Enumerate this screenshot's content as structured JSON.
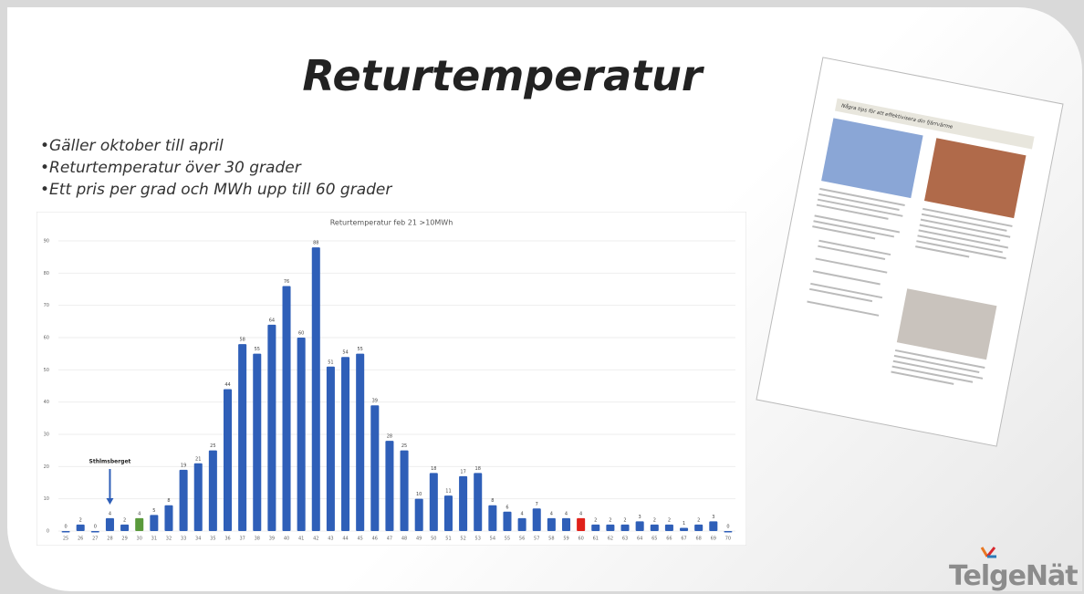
{
  "slide": {
    "title": "Returtemperatur",
    "bullets": [
      "Gäller oktober till april",
      "Returtemperatur över 30 grader",
      "Ett pris per grad och MWh upp till 60 grader"
    ],
    "logo": "TelgeNät",
    "document": {
      "heading": "Några tips för att effektivisera din fjärrvärme"
    }
  },
  "chart_data": {
    "type": "bar",
    "title": "Returtemperatur feb 21 >10MWh",
    "categories": [
      25,
      26,
      27,
      28,
      29,
      30,
      31,
      32,
      33,
      34,
      35,
      36,
      37,
      38,
      39,
      40,
      41,
      42,
      43,
      44,
      45,
      46,
      47,
      48,
      49,
      50,
      51,
      52,
      53,
      54,
      55,
      56,
      57,
      58,
      59,
      60,
      61,
      62,
      63,
      64,
      65,
      66,
      67,
      68,
      69,
      70
    ],
    "values": [
      0,
      2,
      0,
      4,
      2,
      4,
      5,
      8,
      19,
      21,
      25,
      44,
      58,
      55,
      64,
      76,
      60,
      88,
      51,
      54,
      55,
      39,
      28,
      25,
      10,
      18,
      11,
      17,
      18,
      8,
      6,
      4,
      7,
      4,
      4,
      4,
      2,
      2,
      2,
      3,
      2,
      2,
      1,
      2,
      3,
      0
    ],
    "colors": [
      "#2f5fb8",
      "#2f5fb8",
      "#2f5fb8",
      "#2f5fb8",
      "#2f5fb8",
      "#5a9a3c",
      "#2f5fb8",
      "#2f5fb8",
      "#2f5fb8",
      "#2f5fb8",
      "#2f5fb8",
      "#2f5fb8",
      "#2f5fb8",
      "#2f5fb8",
      "#2f5fb8",
      "#2f5fb8",
      "#2f5fb8",
      "#2f5fb8",
      "#2f5fb8",
      "#2f5fb8",
      "#2f5fb8",
      "#2f5fb8",
      "#2f5fb8",
      "#2f5fb8",
      "#2f5fb8",
      "#2f5fb8",
      "#2f5fb8",
      "#2f5fb8",
      "#2f5fb8",
      "#2f5fb8",
      "#2f5fb8",
      "#2f5fb8",
      "#2f5fb8",
      "#2f5fb8",
      "#2f5fb8",
      "#e0221b",
      "#2f5fb8",
      "#2f5fb8",
      "#2f5fb8",
      "#2f5fb8",
      "#2f5fb8",
      "#2f5fb8",
      "#2f5fb8",
      "#2f5fb8",
      "#2f5fb8",
      "#2f5fb8"
    ],
    "ylim": [
      0,
      90
    ],
    "yticks": [
      0,
      10,
      20,
      30,
      40,
      50,
      60,
      70,
      80,
      90
    ],
    "grid": true,
    "annotation": {
      "text": "Sthlmsberget",
      "x": 28
    }
  }
}
